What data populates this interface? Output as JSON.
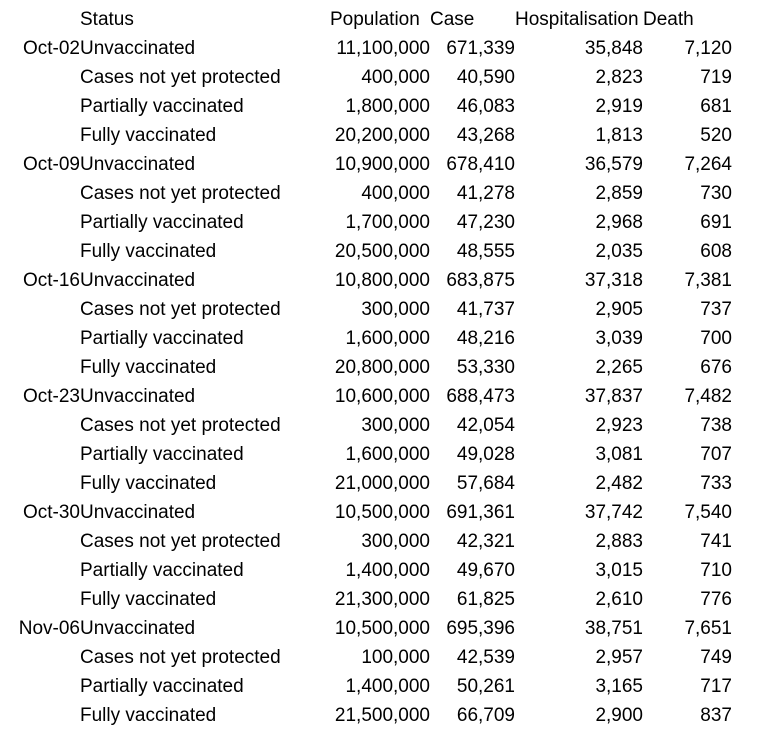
{
  "table": {
    "headers": [
      "",
      "Status",
      "Population",
      "Case",
      "Hospitalisation",
      "Death"
    ],
    "groups": [
      {
        "date": "Oct-02",
        "rows": [
          {
            "status": "Unvaccinated",
            "population": "11,100,000",
            "case": "671,339",
            "hospitalisation": "35,848",
            "death": "7,120"
          },
          {
            "status": "Cases not yet protected",
            "population": "400,000",
            "case": "40,590",
            "hospitalisation": "2,823",
            "death": "719"
          },
          {
            "status": "Partially vaccinated",
            "population": "1,800,000",
            "case": "46,083",
            "hospitalisation": "2,919",
            "death": "681"
          },
          {
            "status": "Fully vaccinated",
            "population": "20,200,000",
            "case": "43,268",
            "hospitalisation": "1,813",
            "death": "520"
          }
        ]
      },
      {
        "date": "Oct-09",
        "rows": [
          {
            "status": "Unvaccinated",
            "population": "10,900,000",
            "case": "678,410",
            "hospitalisation": "36,579",
            "death": "7,264"
          },
          {
            "status": "Cases not yet protected",
            "population": "400,000",
            "case": "41,278",
            "hospitalisation": "2,859",
            "death": "730"
          },
          {
            "status": "Partially vaccinated",
            "population": "1,700,000",
            "case": "47,230",
            "hospitalisation": "2,968",
            "death": "691"
          },
          {
            "status": "Fully vaccinated",
            "population": "20,500,000",
            "case": "48,555",
            "hospitalisation": "2,035",
            "death": "608"
          }
        ]
      },
      {
        "date": "Oct-16",
        "rows": [
          {
            "status": "Unvaccinated",
            "population": "10,800,000",
            "case": "683,875",
            "hospitalisation": "37,318",
            "death": "7,381"
          },
          {
            "status": "Cases not yet protected",
            "population": "300,000",
            "case": "41,737",
            "hospitalisation": "2,905",
            "death": "737"
          },
          {
            "status": "Partially vaccinated",
            "population": "1,600,000",
            "case": "48,216",
            "hospitalisation": "3,039",
            "death": "700"
          },
          {
            "status": "Fully vaccinated",
            "population": "20,800,000",
            "case": "53,330",
            "hospitalisation": "2,265",
            "death": "676"
          }
        ]
      },
      {
        "date": "Oct-23",
        "rows": [
          {
            "status": "Unvaccinated",
            "population": "10,600,000",
            "case": "688,473",
            "hospitalisation": "37,837",
            "death": "7,482"
          },
          {
            "status": "Cases not yet protected",
            "population": "300,000",
            "case": "42,054",
            "hospitalisation": "2,923",
            "death": "738"
          },
          {
            "status": "Partially vaccinated",
            "population": "1,600,000",
            "case": "49,028",
            "hospitalisation": "3,081",
            "death": "707"
          },
          {
            "status": "Fully vaccinated",
            "population": "21,000,000",
            "case": "57,684",
            "hospitalisation": "2,482",
            "death": "733"
          }
        ]
      },
      {
        "date": "Oct-30",
        "rows": [
          {
            "status": "Unvaccinated",
            "population": "10,500,000",
            "case": "691,361",
            "hospitalisation": "37,742",
            "death": "7,540"
          },
          {
            "status": "Cases not yet protected",
            "population": "300,000",
            "case": "42,321",
            "hospitalisation": "2,883",
            "death": "741"
          },
          {
            "status": "Partially vaccinated",
            "population": "1,400,000",
            "case": "49,670",
            "hospitalisation": "3,015",
            "death": "710"
          },
          {
            "status": "Fully vaccinated",
            "population": "21,300,000",
            "case": "61,825",
            "hospitalisation": "2,610",
            "death": "776"
          }
        ]
      },
      {
        "date": "Nov-06",
        "rows": [
          {
            "status": "Unvaccinated",
            "population": "10,500,000",
            "case": "695,396",
            "hospitalisation": "38,751",
            "death": "7,651"
          },
          {
            "status": "Cases not yet protected",
            "population": "100,000",
            "case": "42,539",
            "hospitalisation": "2,957",
            "death": "749"
          },
          {
            "status": "Partially vaccinated",
            "population": "1,400,000",
            "case": "50,261",
            "hospitalisation": "3,165",
            "death": "717"
          },
          {
            "status": "Fully vaccinated",
            "population": "21,500,000",
            "case": "66,709",
            "hospitalisation": "2,900",
            "death": "837"
          }
        ]
      }
    ]
  },
  "colors": {
    "text": "#000000",
    "background": "#ffffff",
    "artifact_blue": "#4472c4",
    "artifact_orange": "#ed7d31"
  }
}
